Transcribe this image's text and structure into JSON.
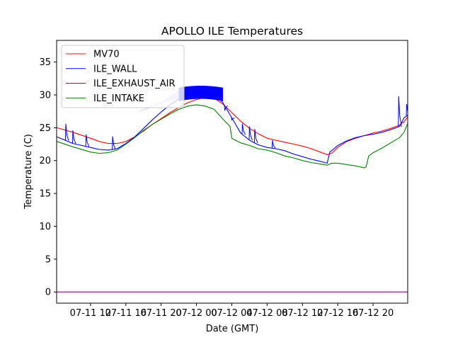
{
  "chart_data": {
    "type": "line",
    "title": "APOLLO ILE Temperatures",
    "xlabel": "Date (GMT)",
    "ylabel": "Temperature (C)",
    "x_units": "hours since 07-11 00:00 GMT",
    "xlim": [
      8.16,
      47.92
    ],
    "ylim": [
      -1.7,
      38.3
    ],
    "grid": false,
    "legend_position": "top-left",
    "x_ticks": [
      {
        "value": 12,
        "label": "07-11 12"
      },
      {
        "value": 16,
        "label": "07-11 16"
      },
      {
        "value": 20,
        "label": "07-11 20"
      },
      {
        "value": 24,
        "label": "07-12 00"
      },
      {
        "value": 28,
        "label": "07-12 04"
      },
      {
        "value": 32,
        "label": "07-12 08"
      },
      {
        "value": 36,
        "label": "07-12 12"
      },
      {
        "value": 40,
        "label": "07-12 16"
      },
      {
        "value": 44,
        "label": "07-12 20"
      }
    ],
    "y_ticks": [
      {
        "value": 0,
        "label": "0"
      },
      {
        "value": 5,
        "label": "5"
      },
      {
        "value": 10,
        "label": "10"
      },
      {
        "value": 15,
        "label": "15"
      },
      {
        "value": 20,
        "label": "20"
      },
      {
        "value": 25,
        "label": "25"
      },
      {
        "value": 30,
        "label": "30"
      },
      {
        "value": 35,
        "label": "35"
      }
    ],
    "series": [
      {
        "name": "MV70",
        "color": "#ff0000",
        "x": [
          8.2,
          10,
          12,
          13,
          14,
          15,
          16,
          17,
          18,
          19,
          20,
          21,
          22,
          23,
          24,
          25,
          26,
          27,
          28,
          29,
          30,
          31,
          32,
          33,
          34,
          35,
          36,
          37,
          38,
          38.8,
          39.3,
          40,
          41,
          42,
          43,
          44,
          45,
          46,
          47,
          47.5,
          47.9
        ],
        "y": [
          25.0,
          24.3,
          23.4,
          22.9,
          22.6,
          22.6,
          22.9,
          23.6,
          24.5,
          25.5,
          26.4,
          27.3,
          28.1,
          28.8,
          29.3,
          29.6,
          29.5,
          28.6,
          27.3,
          26.0,
          24.9,
          24.1,
          23.4,
          23.1,
          22.8,
          22.5,
          22.2,
          21.8,
          21.3,
          20.9,
          21.1,
          22.0,
          22.9,
          23.4,
          23.8,
          24.2,
          24.5,
          24.9,
          25.4,
          25.9,
          26.6
        ]
      },
      {
        "name": "ILE_WALL",
        "color": "#0000ff",
        "x": [
          8.2,
          10,
          12,
          13,
          14,
          15,
          16,
          17,
          18,
          19,
          20,
          21,
          22,
          23,
          24,
          25,
          26,
          27,
          28,
          29,
          30,
          31,
          32,
          33,
          34,
          35,
          36,
          37,
          38,
          38.8,
          39.1,
          40,
          41,
          42,
          43,
          44,
          45,
          46,
          47,
          47.5,
          47.9
        ],
        "y": [
          23.6,
          22.6,
          22.0,
          21.7,
          21.6,
          21.8,
          22.6,
          23.6,
          24.9,
          26.2,
          27.4,
          28.5,
          29.4,
          30.2,
          30.6,
          30.7,
          30.3,
          28.8,
          26.5,
          24.2,
          23.1,
          22.4,
          22.0,
          21.8,
          21.5,
          21.0,
          20.6,
          20.2,
          19.9,
          19.6,
          21.3,
          22.3,
          23.0,
          23.5,
          23.8,
          24.0,
          24.3,
          24.7,
          25.2,
          26.5,
          26.9
        ],
        "spikes": [
          {
            "x": 9.2,
            "y": 25.6
          },
          {
            "x": 10.0,
            "y": 24.6
          },
          {
            "x": 11.5,
            "y": 24.0
          },
          {
            "x": 14.5,
            "y": 23.7
          },
          {
            "x": 27.2,
            "y": 27.6
          },
          {
            "x": 28.0,
            "y": 26.2
          },
          {
            "x": 29.2,
            "y": 25.6
          },
          {
            "x": 30.0,
            "y": 25.2
          },
          {
            "x": 30.6,
            "y": 24.8
          },
          {
            "x": 32.6,
            "y": 23.1
          },
          {
            "x": 46.9,
            "y": 29.8
          },
          {
            "x": 47.8,
            "y": 28.6
          }
        ],
        "band": {
          "x_start": 20,
          "x_end": 27,
          "y_high": 31.4,
          "y_low": 29.8
        }
      },
      {
        "name": "ILE_EXHAUST_AIR",
        "color": "#800080",
        "x": [
          8.16,
          47.92
        ],
        "y": [
          0.0,
          0.0
        ]
      },
      {
        "name": "ILE_INTAKE",
        "color": "#008000",
        "x": [
          8.2,
          10,
          12,
          13,
          14,
          15,
          16,
          17,
          18,
          19,
          20,
          21,
          22,
          23,
          24,
          25,
          26,
          27,
          27.8,
          28,
          29,
          30,
          31,
          32,
          33,
          34,
          35,
          36,
          37,
          38,
          38.8,
          39.3,
          40,
          41,
          42,
          43,
          43.2,
          43.5,
          44,
          45,
          46,
          47,
          47.5,
          47.9
        ],
        "y": [
          22.9,
          22.1,
          21.3,
          21.1,
          21.2,
          21.6,
          22.5,
          23.5,
          24.6,
          25.5,
          26.3,
          27.1,
          27.8,
          28.3,
          28.5,
          28.3,
          27.8,
          26.3,
          25.2,
          23.4,
          22.7,
          22.3,
          21.8,
          21.6,
          21.2,
          20.7,
          20.4,
          20.0,
          19.7,
          19.5,
          19.3,
          19.6,
          19.6,
          19.4,
          19.2,
          18.9,
          19.0,
          20.7,
          21.2,
          21.9,
          22.7,
          23.5,
          24.3,
          25.6
        ]
      }
    ]
  }
}
